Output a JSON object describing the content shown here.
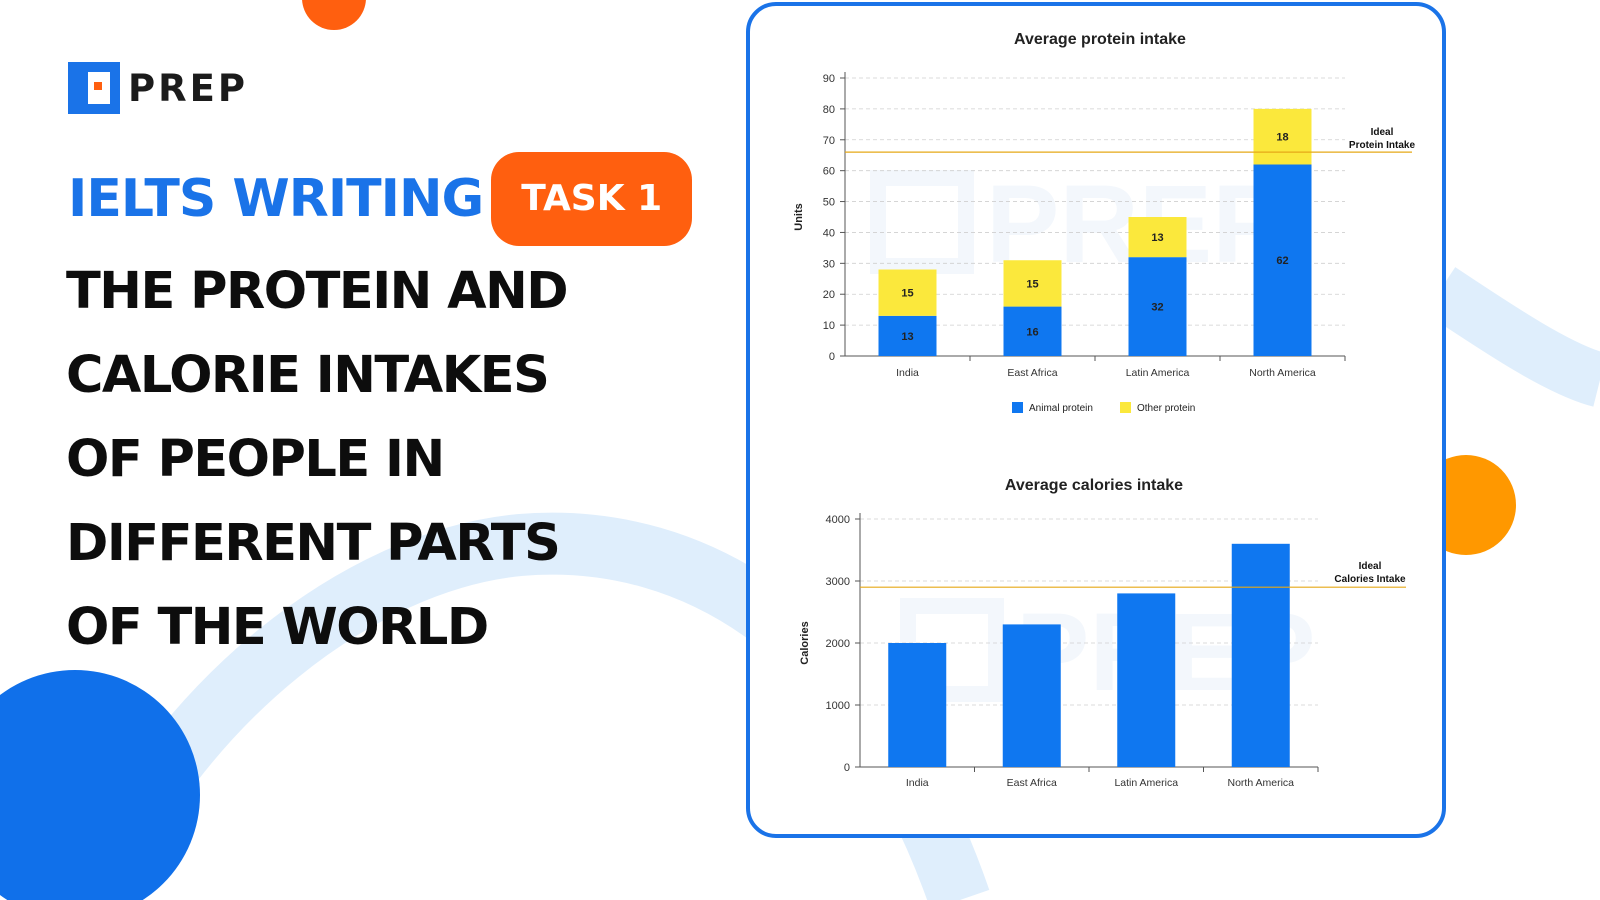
{
  "brand": {
    "name": "PREP"
  },
  "headline": {
    "series": "IELTS WRITING",
    "badge": "TASK 1"
  },
  "title_lines": [
    "THE PROTEIN AND",
    "CALORIE INTAKES",
    "OF PEOPLE IN",
    "DIFFERENT PARTS",
    "OF THE WORLD"
  ],
  "colors": {
    "brand_blue": "#1a73e8",
    "accent_orange": "#ff5f0f",
    "orange_dot": "#ff9800",
    "bar_blue": "#0f77f0",
    "bar_yellow": "#fbe83c",
    "ideal_line": "#e6a817"
  },
  "chart_data": [
    {
      "type": "bar",
      "stacked": true,
      "title": "Average protein intake",
      "ylabel": "Units",
      "xlabel": "",
      "categories": [
        "India",
        "East Africa",
        "Latin America",
        "North America"
      ],
      "series": [
        {
          "name": "Animal protein",
          "values": [
            13,
            16,
            32,
            62
          ],
          "color": "#0f77f0"
        },
        {
          "name": "Other protein",
          "values": [
            15,
            15,
            13,
            18
          ],
          "color": "#fbe83c"
        }
      ],
      "ylim": [
        0,
        90
      ],
      "yticks": [
        0,
        10,
        20,
        30,
        40,
        50,
        60,
        70,
        80,
        90
      ],
      "reference_line": {
        "value": 66,
        "label_lines": [
          "Ideal",
          "Protein Intake"
        ]
      },
      "grid": true,
      "legend": "bottom"
    },
    {
      "type": "bar",
      "title": "Average calories intake",
      "ylabel": "Calories",
      "xlabel": "",
      "categories": [
        "India",
        "East Africa",
        "Latin America",
        "North America"
      ],
      "series": [
        {
          "values": [
            2000,
            2300,
            2800,
            3600
          ],
          "color": "#0f77f0"
        }
      ],
      "ylim": [
        0,
        4000
      ],
      "yticks": [
        0,
        1000,
        2000,
        3000,
        4000
      ],
      "reference_line": {
        "value": 2900,
        "label_lines": [
          "Ideal",
          "Calories Intake"
        ]
      },
      "grid": true,
      "legend": "none"
    }
  ]
}
